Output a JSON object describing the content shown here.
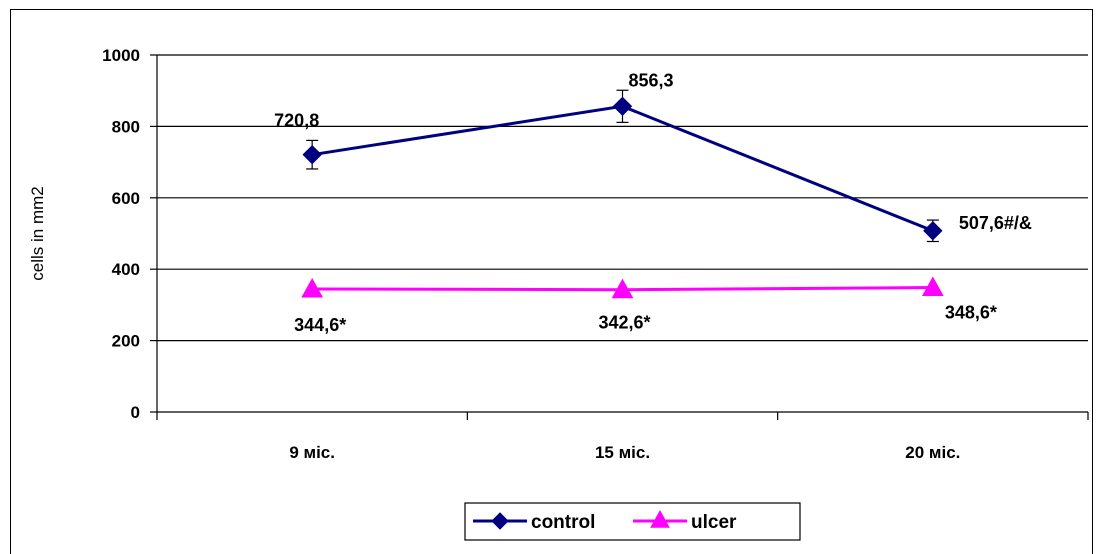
{
  "chart_data": {
    "type": "line",
    "title": "",
    "xlabel": "",
    "ylabel": "cells in mm2",
    "categories": [
      "9 міс.",
      "15 міс.",
      "20 міс."
    ],
    "ylim": [
      0,
      1000
    ],
    "yticks": [
      0,
      200,
      400,
      600,
      800,
      1000
    ],
    "ytick_labels": [
      "0",
      "200",
      "400",
      "600",
      "800",
      "1000"
    ],
    "grid": true,
    "legend_position": "bottom",
    "series": [
      {
        "name": "control",
        "values": [
          720.8,
          856.3,
          507.6
        ],
        "error": [
          40,
          45,
          30
        ],
        "labels": [
          "720,8",
          "856,3",
          "507,6#/&"
        ],
        "color": "#000080",
        "marker": "diamond"
      },
      {
        "name": "ulcer",
        "values": [
          344.6,
          342.6,
          348.6
        ],
        "labels": [
          "344,6*",
          "342,6*",
          "348,6*"
        ],
        "color": "#FF00FF",
        "marker": "triangle"
      }
    ]
  }
}
